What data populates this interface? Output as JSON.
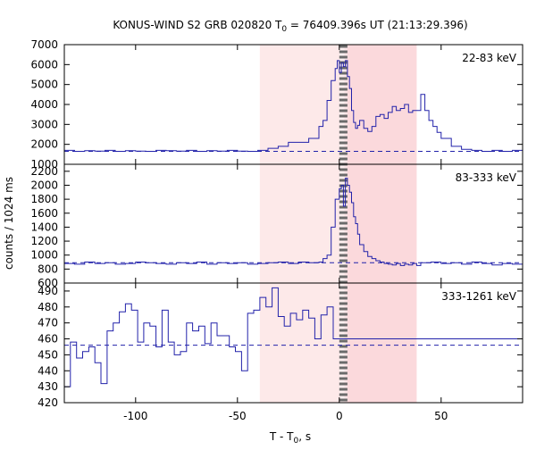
{
  "chart_data": {
    "type": "line",
    "title": {
      "pre": "KONUS-WIND S2 GRB 020820 T",
      "sub": "0",
      "post": " = 76409.396s UT (21:13:29.396)"
    },
    "xlabel": {
      "pre": "T - T",
      "sub": "0",
      "post": ", s"
    },
    "ylabel": "counts / 1024 ms",
    "xlim": [
      -135,
      90
    ],
    "xticks": [
      -100,
      -50,
      0,
      50
    ],
    "x_tick_labels": [
      "-100",
      "-50",
      "0",
      "50"
    ],
    "shaded_intervals": [
      {
        "x0": -39,
        "x1": 2.5,
        "color": "#fde9e9"
      },
      {
        "x0": 2.5,
        "x1": 38,
        "color": "#fbd9dc"
      }
    ],
    "trigger_marker": {
      "x0": 0,
      "x1": 4,
      "color": "#6b6b6b"
    },
    "series_color": "#2222aa",
    "panels": [
      {
        "name": "22-83 keV",
        "ylim": [
          1000,
          7000
        ],
        "yticks": [
          1000,
          2000,
          3000,
          4000,
          5000,
          6000,
          7000
        ],
        "y_tick_labels": [
          "1000",
          "2000",
          "3000",
          "4000",
          "5000",
          "6000",
          "7000"
        ],
        "background_level": 1650,
        "x": [
          -135,
          -130,
          -125,
          -120,
          -115,
          -110,
          -105,
          -100,
          -95,
          -90,
          -85,
          -80,
          -75,
          -70,
          -65,
          -60,
          -55,
          -50,
          -45,
          -40,
          -35,
          -30,
          -25,
          -20,
          -15,
          -10,
          -8,
          -6,
          -4,
          -2,
          -1,
          0,
          1,
          2,
          3,
          4,
          5,
          6,
          7,
          8,
          9,
          10,
          12,
          14,
          16,
          18,
          20,
          22,
          24,
          26,
          28,
          30,
          32,
          34,
          36,
          38,
          40,
          42,
          44,
          46,
          48,
          50,
          55,
          60,
          65,
          70,
          75,
          80,
          85
        ],
        "y": [
          1700,
          1650,
          1680,
          1660,
          1700,
          1650,
          1680,
          1660,
          1650,
          1700,
          1680,
          1660,
          1700,
          1650,
          1680,
          1660,
          1700,
          1660,
          1650,
          1700,
          1800,
          1900,
          2100,
          2100,
          2300,
          2900,
          3200,
          4200,
          5200,
          5800,
          6200,
          5600,
          6100,
          5900,
          6200,
          5400,
          4800,
          3700,
          3100,
          2800,
          2950,
          3200,
          2800,
          2650,
          2900,
          3400,
          3500,
          3300,
          3600,
          3900,
          3700,
          3800,
          4000,
          3600,
          3700,
          3700,
          4500,
          3700,
          3200,
          2900,
          2600,
          2300,
          1900,
          1750,
          1700,
          1650,
          1700,
          1650,
          1700
        ]
      },
      {
        "name": "83-333 keV",
        "ylim": [
          600,
          2300
        ],
        "yticks": [
          600,
          800,
          1000,
          1200,
          1400,
          1600,
          1800,
          2000,
          2200
        ],
        "y_tick_labels": [
          "600",
          "800",
          "1000",
          "1200",
          "1400",
          "1600",
          "1800",
          "2000",
          "2200"
        ],
        "background_level": 890,
        "x": [
          -135,
          -130,
          -125,
          -120,
          -115,
          -110,
          -105,
          -100,
          -95,
          -90,
          -85,
          -80,
          -75,
          -70,
          -65,
          -60,
          -55,
          -50,
          -45,
          -40,
          -35,
          -30,
          -25,
          -20,
          -15,
          -10,
          -8,
          -6,
          -4,
          -2,
          0,
          1,
          2,
          3,
          4,
          5,
          6,
          7,
          8,
          9,
          10,
          12,
          14,
          16,
          18,
          20,
          22,
          24,
          26,
          28,
          30,
          32,
          34,
          36,
          38,
          40,
          45,
          50,
          55,
          60,
          65,
          70,
          75,
          80,
          85
        ],
        "y": [
          880,
          870,
          900,
          880,
          890,
          870,
          880,
          900,
          890,
          880,
          870,
          890,
          880,
          900,
          870,
          890,
          880,
          890,
          870,
          880,
          890,
          900,
          880,
          900,
          890,
          900,
          950,
          1000,
          1400,
          1800,
          1950,
          2000,
          1700,
          2100,
          2000,
          1900,
          1750,
          1550,
          1450,
          1300,
          1150,
          1050,
          980,
          950,
          920,
          900,
          880,
          870,
          860,
          880,
          850,
          870,
          860,
          880,
          850,
          890,
          900,
          880,
          890,
          870,
          900,
          880,
          860,
          880,
          870
        ]
      },
      {
        "name": "333-1261 keV",
        "ylim": [
          420,
          495
        ],
        "yticks": [
          420,
          430,
          440,
          450,
          460,
          470,
          480,
          490
        ],
        "y_tick_labels": [
          "420",
          "430",
          "440",
          "450",
          "460",
          "470",
          "480",
          "490"
        ],
        "background_level": 456,
        "x": [
          -135,
          -132,
          -129,
          -126,
          -123,
          -120,
          -117,
          -114,
          -111,
          -108,
          -105,
          -102,
          -99,
          -96,
          -93,
          -90,
          -87,
          -84,
          -81,
          -78,
          -75,
          -72,
          -69,
          -66,
          -63,
          -60,
          -57,
          -54,
          -51,
          -48,
          -45,
          -42,
          -39,
          -36,
          -33,
          -30,
          -27,
          -24,
          -21,
          -18,
          -15,
          -12,
          -9,
          -6,
          -3
        ],
        "y": [
          430,
          458,
          448,
          452,
          455,
          445,
          432,
          465,
          470,
          477,
          482,
          478,
          458,
          470,
          468,
          455,
          478,
          458,
          450,
          452,
          470,
          465,
          468,
          457,
          470,
          462,
          462,
          455,
          452,
          440,
          476,
          478,
          486,
          480,
          492,
          474,
          468,
          476,
          472,
          478,
          473,
          460,
          475,
          480,
          460
        ]
      }
    ]
  }
}
